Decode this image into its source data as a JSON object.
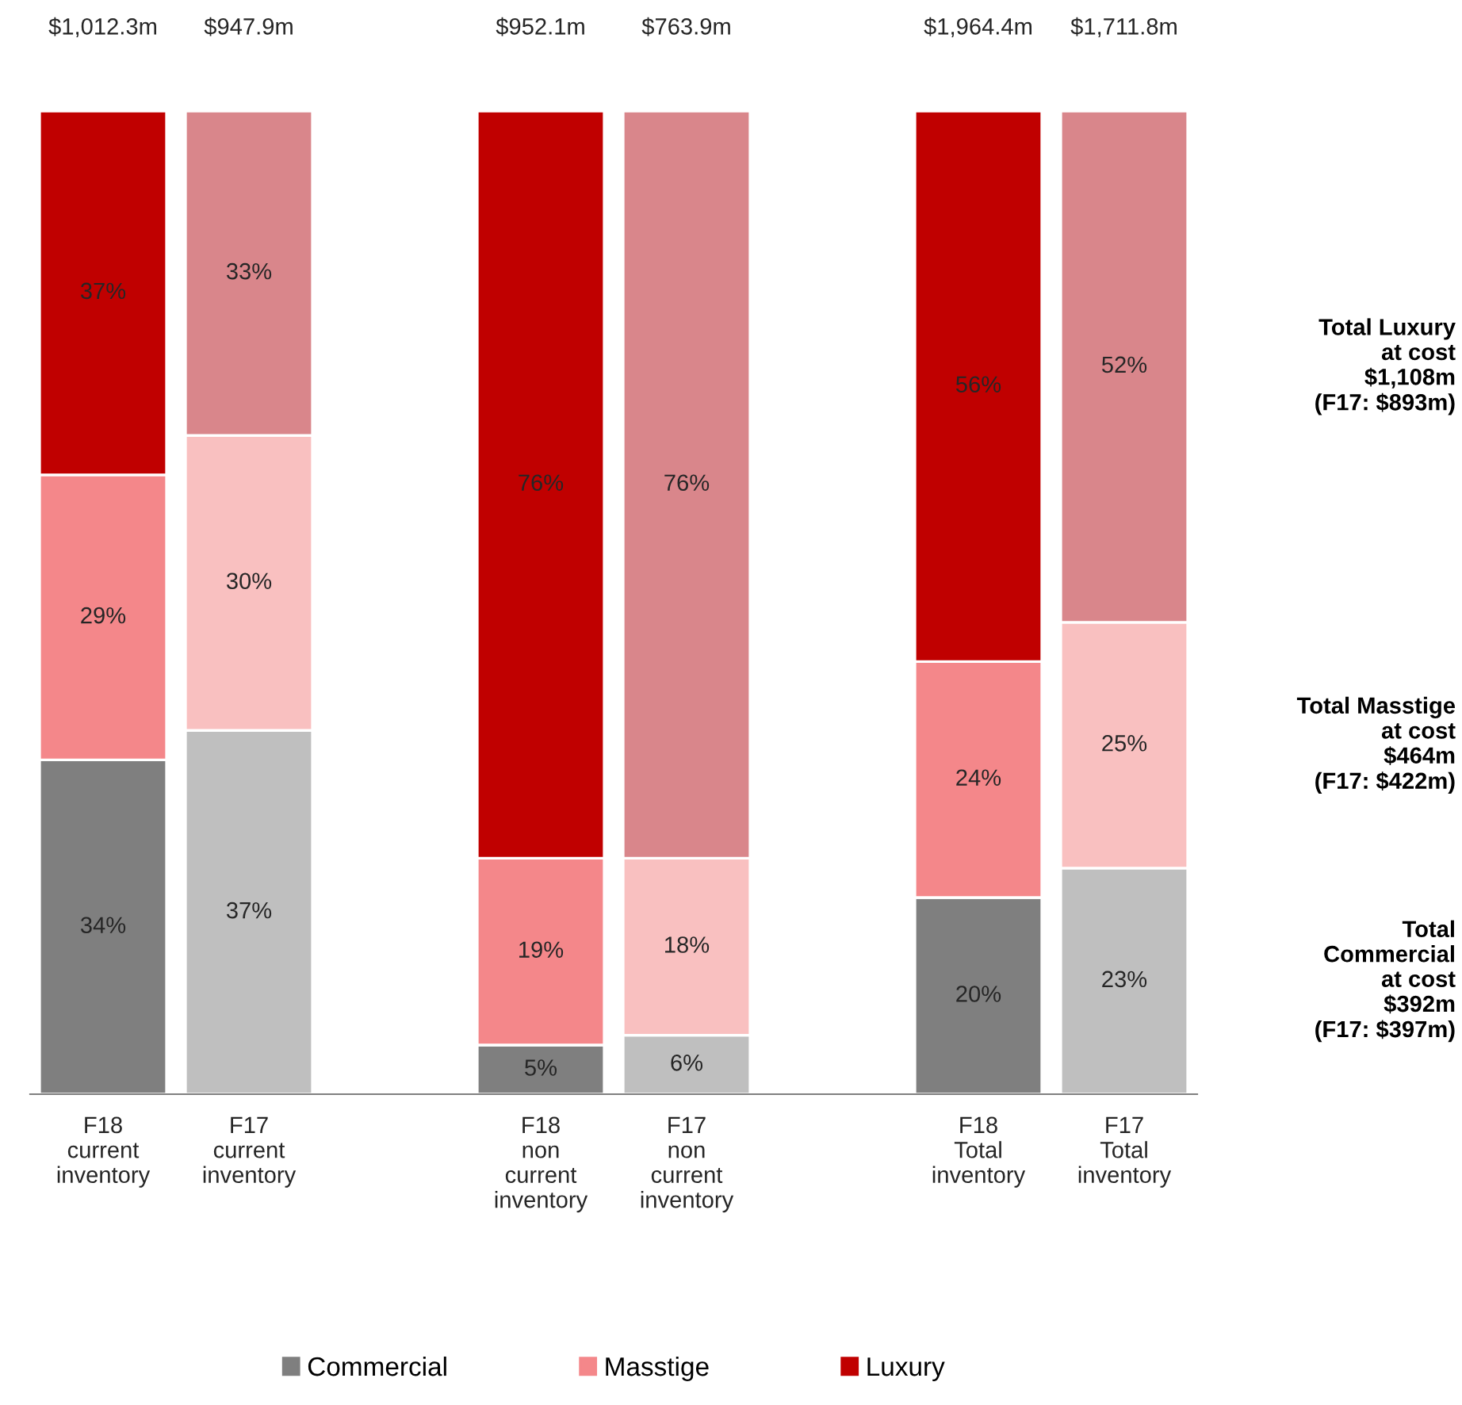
{
  "chart_data": {
    "type": "bar",
    "stacked": true,
    "categories": [
      "F18\ncurrent\ninventory",
      "F17\ncurrent\ninventory",
      null,
      "F18\nnon\ncurrent\ninventory",
      "F17\nnon\ncurrent\ninventory",
      null,
      "F18\nTotal\ninventory",
      "F17\nTotal\ninventory"
    ],
    "series": [
      {
        "name": "Commercial",
        "color": "#7f7f7f",
        "colors": [
          "#7f7f7f",
          "#bfbfbf",
          null,
          "#7f7f7f",
          "#bfbfbf",
          null,
          "#7f7f7f",
          "#bfbfbf"
        ],
        "values": [
          34,
          37,
          null,
          5,
          6,
          null,
          20,
          23
        ],
        "value_labels": [
          "34%",
          "37%",
          null,
          "5%",
          "6%",
          null,
          "20%",
          "23%"
        ]
      },
      {
        "name": "Masstige",
        "color": "#f4878a",
        "colors": [
          "#f4878a",
          "#f9c0c0",
          null,
          "#f4878a",
          "#f9c0c0",
          null,
          "#f4878a",
          "#f9c0c0"
        ],
        "values": [
          29,
          30,
          null,
          19,
          18,
          null,
          24,
          25
        ],
        "value_labels": [
          "29%",
          "30%",
          null,
          "19%",
          "18%",
          null,
          "24%",
          "25%"
        ]
      },
      {
        "name": "Luxury",
        "color": "#c00000",
        "colors": [
          "#c00000",
          "#d9868b",
          null,
          "#c00000",
          "#d9868b",
          null,
          "#c00000",
          "#d9868b"
        ],
        "values": [
          37,
          33,
          null,
          76,
          76,
          null,
          56,
          52
        ],
        "value_labels": [
          "37%",
          "33%",
          null,
          "76%",
          "76%",
          null,
          "56%",
          "52%"
        ]
      }
    ],
    "ylim": [
      0,
      100
    ],
    "tick_labels": "x",
    "legend": "bottom",
    "annotations": [
      "$1,012.3m",
      "$947.9m",
      "$952.1m",
      "$763.9m",
      "$1,964.4m",
      "$1,711.8m",
      "Total Luxury\nat cost\n$1,108m\n(F17: $893m)",
      "Total Masstige\nat cost\n$464m\n(F17: $422m)",
      "Total\nCommercial\nat cost\n$392m\n(F17: $397m)"
    ]
  }
}
